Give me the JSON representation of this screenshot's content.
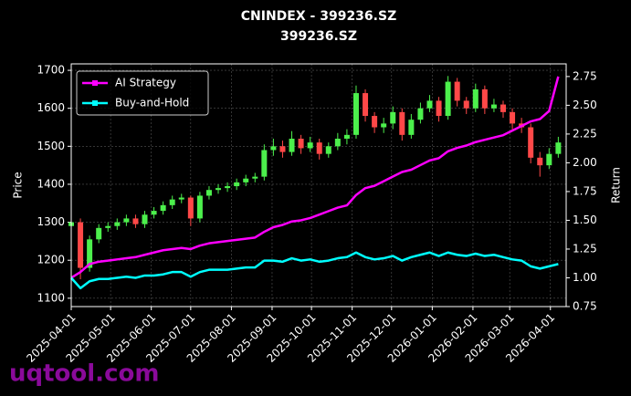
{
  "chart_data": {
    "type": "candlestick",
    "title": "CNINDEX - 399236.SZ",
    "subtitle": "399236.SZ",
    "ylabel": "Price",
    "y2label": "Return",
    "watermark": "uqtool.com",
    "x": [
      "2025-04-01",
      "2025-04-08",
      "2025-04-15",
      "2025-04-22",
      "2025-04-29",
      "2025-05-06",
      "2025-05-13",
      "2025-05-20",
      "2025-05-27",
      "2025-06-03",
      "2025-06-10",
      "2025-06-17",
      "2025-06-24",
      "2025-07-01",
      "2025-07-08",
      "2025-07-15",
      "2025-07-22",
      "2025-07-29",
      "2025-08-05",
      "2025-08-12",
      "2025-08-19",
      "2025-08-26",
      "2025-09-02",
      "2025-09-09",
      "2025-09-16",
      "2025-09-23",
      "2025-09-30",
      "2025-10-07",
      "2025-10-14",
      "2025-10-21",
      "2025-10-28",
      "2025-11-04",
      "2025-11-11",
      "2025-11-18",
      "2025-11-25",
      "2025-12-02",
      "2025-12-09",
      "2025-12-16",
      "2025-12-23",
      "2025-12-30",
      "2026-01-06",
      "2026-01-13",
      "2026-01-20",
      "2026-01-27",
      "2026-02-03",
      "2026-02-10",
      "2026-02-17",
      "2026-02-24",
      "2026-03-03",
      "2026-03-10",
      "2026-03-17",
      "2026-03-24",
      "2026-03-31",
      "2026-04-07"
    ],
    "ohlc": {
      "up_color": "#4cf04c",
      "down_color": "#ff4848",
      "open": [
        1290,
        1300,
        1180,
        1255,
        1285,
        1290,
        1300,
        1310,
        1295,
        1320,
        1330,
        1345,
        1360,
        1365,
        1310,
        1370,
        1385,
        1390,
        1395,
        1405,
        1415,
        1420,
        1490,
        1500,
        1485,
        1520,
        1495,
        1510,
        1480,
        1500,
        1520,
        1530,
        1640,
        1580,
        1550,
        1560,
        1590,
        1530,
        1570,
        1600,
        1620,
        1580,
        1670,
        1620,
        1600,
        1650,
        1600,
        1610,
        1590,
        1560,
        1550,
        1470,
        1450,
        1480
      ],
      "high": [
        1315,
        1310,
        1265,
        1295,
        1300,
        1310,
        1320,
        1320,
        1330,
        1340,
        1355,
        1370,
        1375,
        1370,
        1380,
        1395,
        1400,
        1405,
        1415,
        1425,
        1430,
        1505,
        1520,
        1515,
        1540,
        1530,
        1525,
        1520,
        1510,
        1535,
        1545,
        1660,
        1650,
        1590,
        1575,
        1605,
        1600,
        1585,
        1615,
        1635,
        1630,
        1685,
        1680,
        1630,
        1665,
        1660,
        1625,
        1620,
        1600,
        1575,
        1560,
        1485,
        1495,
        1525
      ],
      "low": [
        1280,
        1150,
        1170,
        1245,
        1275,
        1280,
        1290,
        1285,
        1285,
        1310,
        1320,
        1335,
        1350,
        1290,
        1300,
        1360,
        1375,
        1380,
        1385,
        1395,
        1405,
        1410,
        1475,
        1470,
        1475,
        1480,
        1485,
        1465,
        1470,
        1490,
        1505,
        1520,
        1565,
        1535,
        1535,
        1545,
        1515,
        1520,
        1560,
        1590,
        1565,
        1570,
        1605,
        1585,
        1590,
        1585,
        1590,
        1575,
        1545,
        1535,
        1455,
        1420,
        1440,
        1470
      ],
      "close": [
        1300,
        1180,
        1255,
        1285,
        1290,
        1300,
        1310,
        1295,
        1320,
        1330,
        1345,
        1360,
        1365,
        1310,
        1370,
        1385,
        1390,
        1395,
        1405,
        1415,
        1420,
        1490,
        1500,
        1485,
        1520,
        1495,
        1510,
        1480,
        1500,
        1520,
        1530,
        1640,
        1580,
        1550,
        1560,
        1590,
        1530,
        1570,
        1600,
        1620,
        1580,
        1670,
        1620,
        1600,
        1650,
        1600,
        1610,
        1590,
        1560,
        1550,
        1470,
        1450,
        1480,
        1510
      ]
    },
    "series": [
      {
        "name": "AI Strategy",
        "color": "#ff00ff",
        "axis": "y2",
        "values": [
          1.0,
          1.05,
          1.12,
          1.14,
          1.15,
          1.16,
          1.17,
          1.18,
          1.2,
          1.22,
          1.24,
          1.25,
          1.26,
          1.25,
          1.28,
          1.3,
          1.31,
          1.32,
          1.33,
          1.34,
          1.35,
          1.4,
          1.44,
          1.46,
          1.49,
          1.5,
          1.52,
          1.55,
          1.58,
          1.61,
          1.63,
          1.72,
          1.78,
          1.8,
          1.84,
          1.88,
          1.92,
          1.94,
          1.98,
          2.02,
          2.04,
          2.1,
          2.13,
          2.15,
          2.18,
          2.2,
          2.22,
          2.24,
          2.28,
          2.32,
          2.36,
          2.38,
          2.45,
          2.75
        ]
      },
      {
        "name": "Buy-and-Hold",
        "color": "#00ffff",
        "axis": "y2",
        "values": [
          1.0,
          0.91,
          0.97,
          0.99,
          0.99,
          1.0,
          1.01,
          1.0,
          1.02,
          1.02,
          1.03,
          1.05,
          1.05,
          1.01,
          1.05,
          1.07,
          1.07,
          1.07,
          1.08,
          1.09,
          1.09,
          1.15,
          1.15,
          1.14,
          1.17,
          1.15,
          1.16,
          1.14,
          1.15,
          1.17,
          1.18,
          1.22,
          1.18,
          1.16,
          1.17,
          1.19,
          1.15,
          1.18,
          1.2,
          1.22,
          1.19,
          1.22,
          1.2,
          1.19,
          1.21,
          1.19,
          1.2,
          1.18,
          1.16,
          1.15,
          1.1,
          1.08,
          1.1,
          1.12
        ]
      }
    ],
    "xlim": [
      "2025-04-01",
      "2026-04-13"
    ],
    "xticks": [
      "2025-04-01",
      "2025-05-01",
      "2025-06-01",
      "2025-07-01",
      "2025-08-01",
      "2025-09-01",
      "2025-10-01",
      "2025-11-01",
      "2025-12-01",
      "2026-01-01",
      "2026-02-01",
      "2026-03-01",
      "2026-04-01"
    ],
    "ylim": [
      1078,
      1717
    ],
    "yticks": [
      1100,
      1200,
      1300,
      1400,
      1500,
      1600,
      1700
    ],
    "y2lim": [
      0.75,
      2.86
    ],
    "y2ticks": [
      0.75,
      {
        "value": 1,
        "label": "1.00"
      },
      1.25,
      {
        "value": 1.5,
        "label": "1.50"
      },
      1.75,
      {
        "value": 2,
        "label": "2.00"
      },
      2.25,
      {
        "value": 2.5,
        "label": "2.50"
      },
      2.75
    ],
    "grid": true,
    "legend": "upper left"
  }
}
